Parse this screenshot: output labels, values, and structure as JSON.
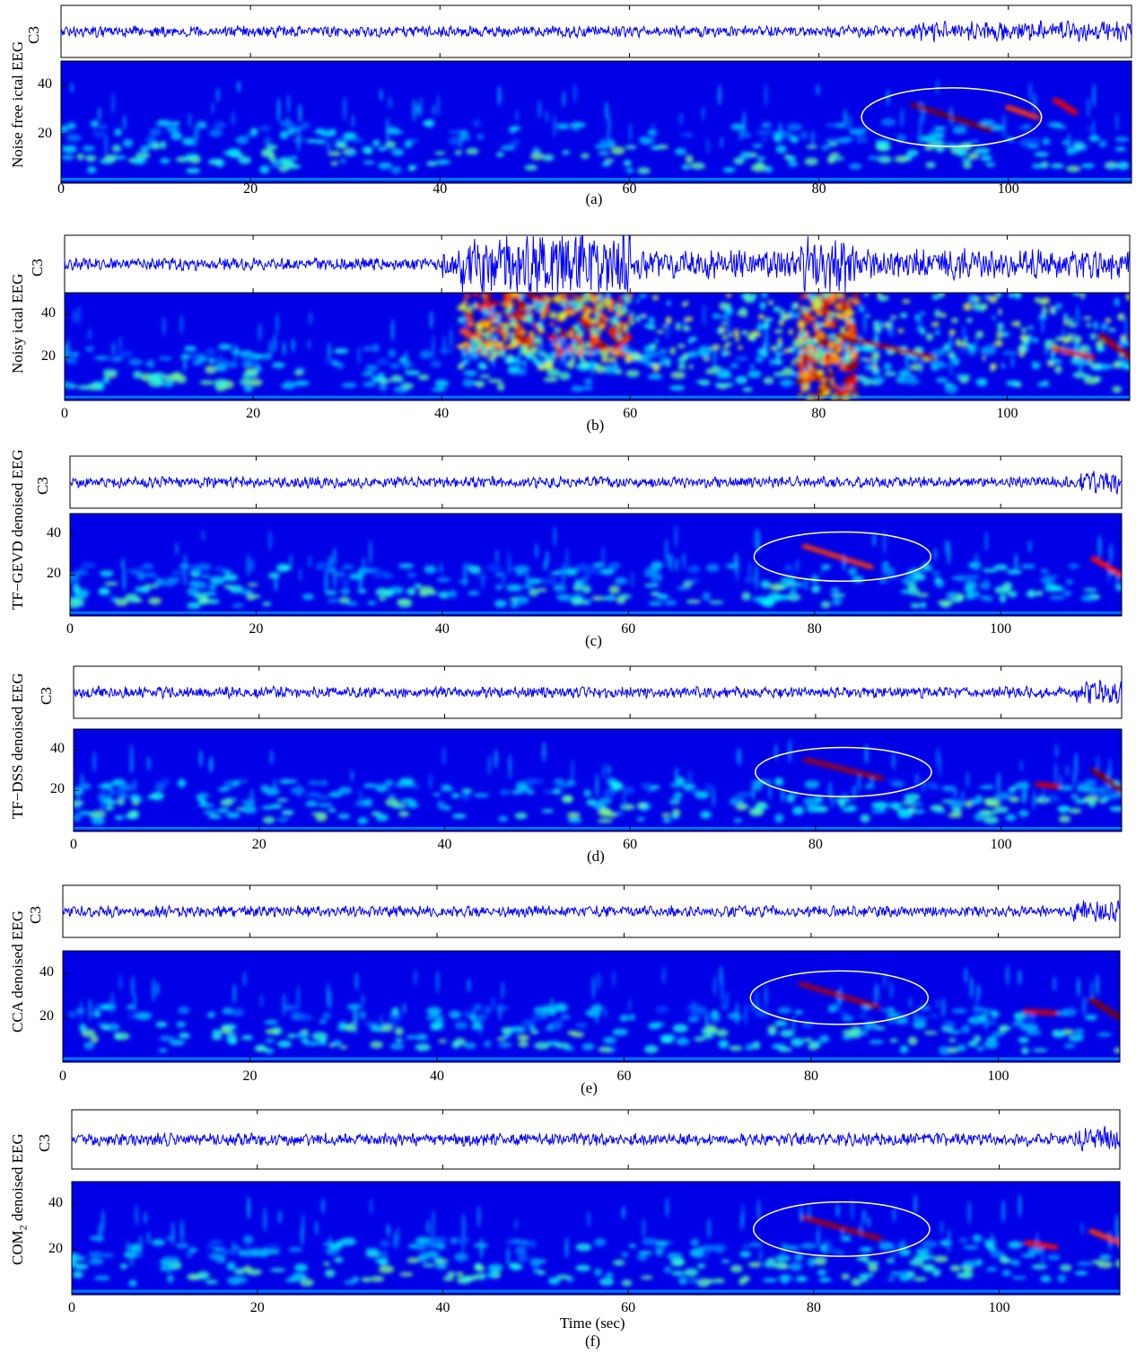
{
  "chart_data": [
    {
      "panel": "(a)",
      "type": "heatmap",
      "ylabel": "Noise free ictal EEG",
      "signal_label": "C3",
      "yticks": [
        20,
        40
      ],
      "xticks": [
        0,
        20,
        40,
        60,
        80,
        100
      ],
      "xlim": [
        0,
        113
      ],
      "ylim": [
        0,
        50
      ],
      "annotation": {
        "shape": "ellipse",
        "center": [
          94,
          27
        ],
        "radii": [
          9.5,
          12
        ]
      },
      "ridges": [
        {
          "x": [
            90,
            98
          ],
          "y": [
            32,
            22
          ],
          "intensity": 1.0
        },
        {
          "x": [
            105,
            107
          ],
          "y": [
            34,
            29
          ],
          "intensity": 0.75
        },
        {
          "x": [
            100,
            103
          ],
          "y": [
            31,
            27
          ],
          "intensity": 0.6
        }
      ],
      "noise_bursts": []
    },
    {
      "panel": "(b)",
      "type": "heatmap",
      "ylabel": "Noisy ictal EEG",
      "signal_label": "C3",
      "yticks": [
        20,
        40
      ],
      "xticks": [
        0,
        20,
        40,
        60,
        80,
        100
      ],
      "xlim": [
        0,
        113
      ],
      "ylim": [
        0,
        50
      ],
      "annotation": null,
      "ridges": [
        {
          "x": [
            82,
            92
          ],
          "y": [
            30,
            20
          ],
          "intensity": 0.9
        },
        {
          "x": [
            110,
            113
          ],
          "y": [
            30,
            20
          ],
          "intensity": 0.9
        },
        {
          "x": [
            105,
            109
          ],
          "y": [
            24,
            20
          ],
          "intensity": 0.8
        }
      ],
      "noise_bursts": [
        {
          "x": [
            42,
            60
          ],
          "y": [
            20,
            50
          ],
          "intensity": 1.0
        },
        {
          "x": [
            78,
            84
          ],
          "y": [
            0,
            50
          ],
          "intensity": 0.9
        }
      ]
    },
    {
      "panel": "(c)",
      "type": "heatmap",
      "ylabel": "TF−GEVD denoised EEG",
      "signal_label": "C3",
      "yticks": [
        20,
        40
      ],
      "xticks": [
        0,
        20,
        40,
        60,
        80,
        100
      ],
      "xlim": [
        0,
        113
      ],
      "ylim": [
        0,
        50
      ],
      "annotation": {
        "shape": "ellipse",
        "center": [
          83,
          29
        ],
        "radii": [
          9.5,
          12
        ]
      },
      "ridges": [
        {
          "x": [
            79,
            86
          ],
          "y": [
            34,
            24
          ],
          "intensity": 0.6
        },
        {
          "x": [
            110,
            113
          ],
          "y": [
            28,
            20
          ],
          "intensity": 0.7
        }
      ],
      "noise_bursts": []
    },
    {
      "panel": "(d)",
      "type": "heatmap",
      "ylabel": "TF−DSS denoised EEG",
      "signal_label": "C3",
      "yticks": [
        20,
        40
      ],
      "xticks": [
        0,
        20,
        40,
        60,
        80,
        100
      ],
      "xlim": [
        0,
        113
      ],
      "ylim": [
        0,
        50
      ],
      "annotation": {
        "shape": "ellipse",
        "center": [
          83,
          29
        ],
        "radii": [
          9.5,
          12
        ]
      },
      "ridges": [
        {
          "x": [
            79,
            87
          ],
          "y": [
            35,
            26
          ],
          "intensity": 0.9
        },
        {
          "x": [
            110,
            113
          ],
          "y": [
            30,
            20
          ],
          "intensity": 1.0
        },
        {
          "x": [
            104,
            106
          ],
          "y": [
            23,
            22
          ],
          "intensity": 0.8
        }
      ],
      "noise_bursts": []
    },
    {
      "panel": "(e)",
      "type": "heatmap",
      "ylabel": "CCA denoised EEG",
      "signal_label": "C3",
      "yticks": [
        20,
        40
      ],
      "xticks": [
        0,
        20,
        40,
        60,
        80,
        100
      ],
      "xlim": [
        0,
        113
      ],
      "ylim": [
        0,
        50
      ],
      "annotation": {
        "shape": "ellipse",
        "center": [
          83,
          29
        ],
        "radii": [
          9.5,
          12
        ]
      },
      "ridges": [
        {
          "x": [
            79,
            87
          ],
          "y": [
            35,
            25
          ],
          "intensity": 0.9
        },
        {
          "x": [
            110,
            113
          ],
          "y": [
            28,
            20
          ],
          "intensity": 1.0
        },
        {
          "x": [
            103,
            106
          ],
          "y": [
            23,
            22
          ],
          "intensity": 0.8
        }
      ],
      "noise_bursts": []
    },
    {
      "panel": "(f)",
      "type": "heatmap",
      "ylabel": "COM",
      "ylabel_sub": "2",
      "ylabel_tail": " denoised EEG",
      "signal_label": "C3",
      "yticks": [
        20,
        40
      ],
      "xticks": [
        0,
        20,
        40,
        60,
        80,
        100
      ],
      "xlim": [
        0,
        113
      ],
      "ylim": [
        0,
        50
      ],
      "xlabel": "Time (sec)",
      "annotation": {
        "shape": "ellipse",
        "center": [
          83,
          29
        ],
        "radii": [
          9.5,
          12
        ]
      },
      "ridges": [
        {
          "x": [
            79,
            87
          ],
          "y": [
            34,
            25
          ],
          "intensity": 0.9
        },
        {
          "x": [
            103,
            106
          ],
          "y": [
            23,
            21
          ],
          "intensity": 0.7
        },
        {
          "x": [
            110,
            113
          ],
          "y": [
            28,
            23
          ],
          "intensity": 0.6
        }
      ],
      "noise_bursts": []
    }
  ]
}
